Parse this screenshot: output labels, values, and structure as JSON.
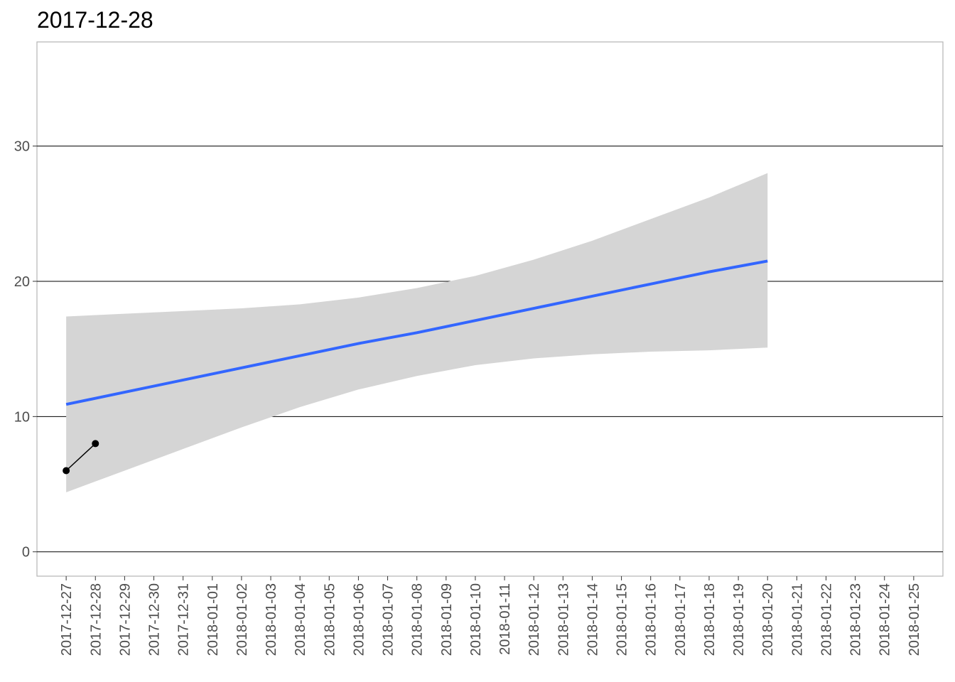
{
  "chart_data": {
    "type": "line",
    "title": "2017-12-28",
    "xlabel": "",
    "ylabel": "",
    "x_ticks": [
      "2017-12-27",
      "2017-12-28",
      "2017-12-29",
      "2017-12-30",
      "2017-12-31",
      "2018-01-01",
      "2018-01-02",
      "2018-01-03",
      "2018-01-04",
      "2018-01-05",
      "2018-01-06",
      "2018-01-07",
      "2018-01-08",
      "2018-01-09",
      "2018-01-10",
      "2018-01-11",
      "2018-01-12",
      "2018-01-13",
      "2018-01-14",
      "2018-01-15",
      "2018-01-16",
      "2018-01-17",
      "2018-01-18",
      "2018-01-19",
      "2018-01-20",
      "2018-01-21",
      "2018-01-22",
      "2018-01-23",
      "2018-01-24",
      "2018-01-25"
    ],
    "y_ticks": [
      0,
      10,
      20,
      30
    ],
    "xlim": [
      "2017-12-26",
      "2018-01-26"
    ],
    "ylim": [
      -1.8,
      37.7
    ],
    "grid": {
      "horizontal": true,
      "vertical": false
    },
    "series": [
      {
        "x": [
          "2017-12-27",
          "2017-12-28"
        ],
        "y": [
          6,
          8
        ],
        "color": "#000000"
      }
    ],
    "trend": {
      "x": [
        "2017-12-27",
        "2017-12-29",
        "2017-12-31",
        "2018-01-02",
        "2018-01-04",
        "2018-01-06",
        "2018-01-08",
        "2018-01-10",
        "2018-01-12",
        "2018-01-14",
        "2018-01-16",
        "2018-01-18",
        "2018-01-20"
      ],
      "y": [
        10.9,
        11.8,
        12.7,
        13.6,
        14.5,
        15.4,
        16.2,
        17.1,
        18.0,
        18.9,
        19.8,
        20.7,
        21.5
      ],
      "upper": [
        17.4,
        17.6,
        17.8,
        18.0,
        18.3,
        18.8,
        19.5,
        20.4,
        21.6,
        23.0,
        24.6,
        26.2,
        28.0
      ],
      "lower": [
        4.4,
        6.0,
        7.6,
        9.2,
        10.7,
        12.0,
        13.0,
        13.8,
        14.3,
        14.6,
        14.8,
        14.9,
        15.1
      ],
      "line_color": "#3366FF",
      "band_color": "#d5d5d5"
    }
  }
}
